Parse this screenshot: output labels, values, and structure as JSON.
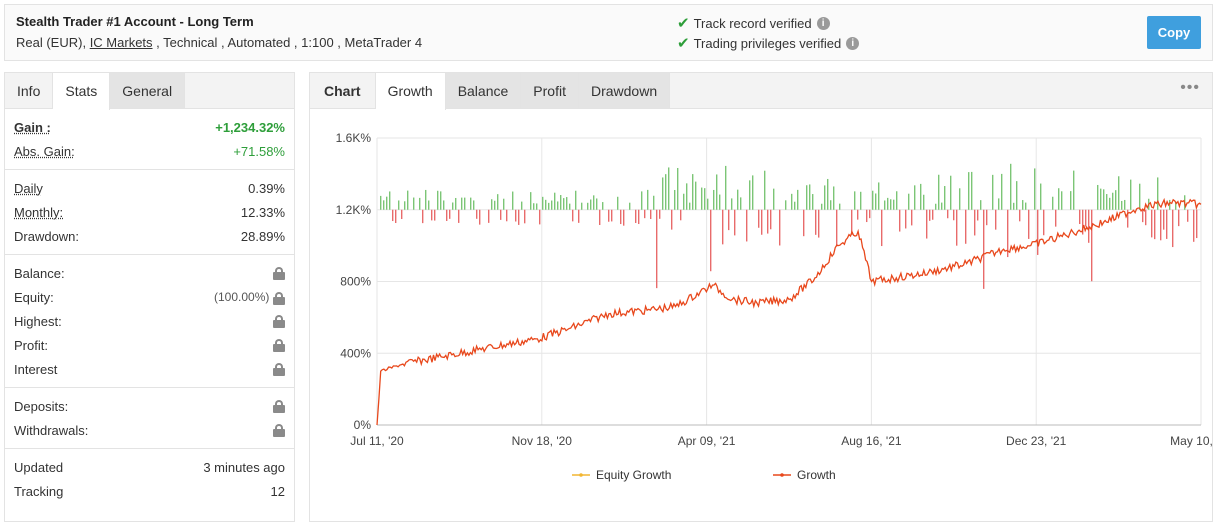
{
  "header": {
    "title": "Stealth Trader #1 Account - Long Term",
    "meta_prefix": "Real (EUR), ",
    "broker": "IC Markets",
    "meta_suffix": " , Technical , Automated , 1:100 , MetaTrader 4",
    "verify1": "Track record verified",
    "verify2": "Trading privileges verified",
    "copy_label": "Copy"
  },
  "left_tabs": [
    "Info",
    "Stats",
    "General"
  ],
  "stats": {
    "gain_label": "Gain :",
    "gain_value": "+1,234.32%",
    "abs_label": "Abs. Gain:",
    "abs_value": "+71.58%",
    "daily_label": "Daily",
    "daily_value": "0.39%",
    "monthly_label": "Monthly:",
    "monthly_value": "12.33%",
    "drawdown_label": "Drawdown:",
    "drawdown_value": "28.89%",
    "balance_label": "Balance:",
    "equity_label": "Equity:",
    "equity_value": "(100.00%)",
    "highest_label": "Highest:",
    "profit_label": "Profit:",
    "interest_label": "Interest",
    "deposits_label": "Deposits:",
    "withdrawals_label": "Withdrawals:",
    "updated_label": "Updated",
    "updated_value": "3 minutes ago",
    "tracking_label": "Tracking",
    "tracking_value": "12"
  },
  "right_tabs": [
    "Chart",
    "Growth",
    "Balance",
    "Profit",
    "Drawdown"
  ],
  "menu_icon": "more-dots-icon",
  "colors": {
    "growth": "#e8481c",
    "equity": "#f2b632",
    "bar_up": "#7cc576",
    "bar_down": "#e86b6b",
    "accent": "#3f9fde"
  },
  "chart_data": {
    "type": "line",
    "y_ticks": [
      "1.6K%",
      "1.2K%",
      "800%",
      "400%",
      "0%"
    ],
    "x_ticks": [
      "Jul 11, '20",
      "Nov 18, '20",
      "Apr 09, '21",
      "Aug 16, '21",
      "Dec 23, '21",
      "May 10, '22"
    ],
    "ylim": [
      0,
      1600
    ],
    "grid": true,
    "legend_position": "bottom",
    "series": [
      {
        "name": "Equity Growth",
        "values": []
      },
      {
        "name": "Growth",
        "x": [
          "Jul 11, '20",
          "Jul 14, '20",
          "Aug 1, '20",
          "Sep 1, '20",
          "Oct 1, '20",
          "Nov 18, '20",
          "Dec 15, '20",
          "Jan 15, '21",
          "Feb 15, '21",
          "Mar 10, '21",
          "Apr 9, '21",
          "Apr 25, '21",
          "May 15, '21",
          "Jun 10, '21",
          "Jul 1, '21",
          "Jul 20, '21",
          "Aug 5, '21",
          "Aug 16, '21",
          "Sep 5, '21",
          "Oct 1, '21",
          "Nov 1, '21",
          "Dec 1, '21",
          "Dec 23, '21",
          "Jan 20, '22",
          "Feb 20, '22",
          "Mar 20, '22",
          "Apr 15, '22",
          "May 10, '22"
        ],
        "values": [
          0,
          300,
          340,
          380,
          420,
          480,
          540,
          620,
          640,
          660,
          780,
          700,
          680,
          700,
          820,
          1000,
          1080,
          800,
          820,
          850,
          900,
          980,
          1000,
          1060,
          1130,
          1210,
          1240,
          1230
        ]
      }
    ],
    "bars_note": "daily profit bars centered on 1.2K% baseline"
  }
}
